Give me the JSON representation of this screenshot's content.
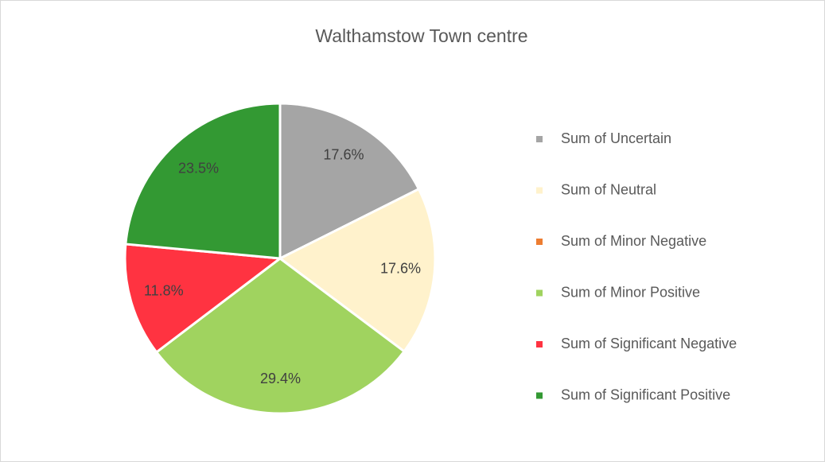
{
  "chart_data": {
    "type": "pie",
    "title": "Walthamstow Town centre",
    "categories": [
      "Sum of Uncertain",
      "Sum of Neutral",
      "Sum of Minor Negative",
      "Sum of Minor Positive",
      "Sum of Significant Negative",
      "Sum of Significant Positive"
    ],
    "values": [
      17.6,
      17.6,
      0,
      29.4,
      11.8,
      23.5
    ],
    "value_labels": [
      "17.6%",
      "17.6%",
      null,
      "29.4%",
      "11.8%",
      "23.5%"
    ],
    "colors": [
      "#a5a5a5",
      "#fff2cc",
      "#ed7d31",
      "#a0d35f",
      "#ff3341",
      "#339933"
    ],
    "legend": "right"
  }
}
